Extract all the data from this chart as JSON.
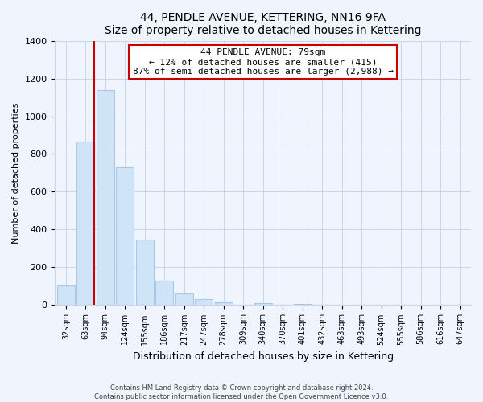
{
  "title": "44, PENDLE AVENUE, KETTERING, NN16 9FA",
  "subtitle": "Size of property relative to detached houses in Kettering",
  "xlabel": "Distribution of detached houses by size in Kettering",
  "ylabel": "Number of detached properties",
  "bar_labels": [
    "32sqm",
    "63sqm",
    "94sqm",
    "124sqm",
    "155sqm",
    "186sqm",
    "217sqm",
    "247sqm",
    "278sqm",
    "309sqm",
    "340sqm",
    "370sqm",
    "401sqm",
    "432sqm",
    "463sqm",
    "493sqm",
    "524sqm",
    "555sqm",
    "586sqm",
    "616sqm",
    "647sqm"
  ],
  "bar_values": [
    105,
    865,
    1140,
    730,
    345,
    130,
    60,
    30,
    15,
    0,
    10,
    0,
    5,
    0,
    0,
    0,
    0,
    0,
    0,
    0,
    0
  ],
  "bar_color": "#d0e4f7",
  "bar_edge_color": "#a8c8e8",
  "vline_x_index": 1,
  "vline_color": "#cc0000",
  "annotation_text": "44 PENDLE AVENUE: 79sqm\n← 12% of detached houses are smaller (415)\n87% of semi-detached houses are larger (2,988) →",
  "annotation_box_color": "#ffffff",
  "annotation_box_edge_color": "#cc0000",
  "ylim": [
    0,
    1400
  ],
  "yticks": [
    0,
    200,
    400,
    600,
    800,
    1000,
    1200,
    1400
  ],
  "grid_color": "#c8d8e8",
  "footer_line1": "Contains HM Land Registry data © Crown copyright and database right 2024.",
  "footer_line2": "Contains public sector information licensed under the Open Government Licence v3.0.",
  "bg_color": "#f0f4fc",
  "plot_bg_color": "#f0f4fc"
}
